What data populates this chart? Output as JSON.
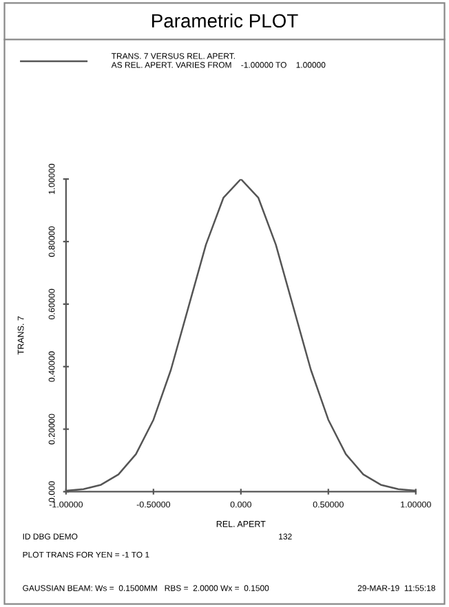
{
  "chart_data": {
    "type": "line",
    "title": "Parametric PLOT",
    "xlabel": "REL. APERT",
    "ylabel": "TRANS. 7",
    "x": [
      -1.0,
      -0.9,
      -0.8,
      -0.7,
      -0.6,
      -0.5,
      -0.4,
      -0.3,
      -0.2,
      -0.1,
      0.0,
      0.1,
      0.2,
      0.3,
      0.4,
      0.5,
      0.6,
      0.7,
      0.8,
      0.9,
      1.0
    ],
    "series": [
      {
        "name": "TRANS. 7 VERSUS REL. APERT.\nAS REL. APERT. VARIES FROM    -1.00000 TO    1.00000",
        "color": "#555555",
        "values": [
          0.003,
          0.008,
          0.022,
          0.055,
          0.12,
          0.23,
          0.39,
          0.59,
          0.79,
          0.94,
          1.0,
          0.94,
          0.79,
          0.59,
          0.39,
          0.23,
          0.12,
          0.055,
          0.022,
          0.008,
          0.003
        ]
      }
    ],
    "xlim": [
      -1.0,
      1.0
    ],
    "ylim": [
      0.0,
      1.0
    ],
    "xticks": [
      {
        "value": -1.0,
        "label": "-1.00000"
      },
      {
        "value": -0.5,
        "label": "-0.50000"
      },
      {
        "value": 0.0,
        "label": "0.000"
      },
      {
        "value": 0.5,
        "label": "0.50000"
      },
      {
        "value": 1.0,
        "label": "1.00000"
      }
    ],
    "yticks": [
      {
        "value": 0.0,
        "label": "0.000"
      },
      {
        "value": 0.2,
        "label": "0.20000"
      },
      {
        "value": 0.4,
        "label": "0.40000"
      },
      {
        "value": 0.6,
        "label": "0.60000"
      },
      {
        "value": 0.8,
        "label": "0.80000"
      },
      {
        "value": 1.0,
        "label": "1.00000"
      }
    ],
    "grid": false,
    "legend": "top left",
    "marker": "none",
    "line_style": "solid",
    "annotations": [
      "ID DBG DEMO",
      "132",
      "PLOT TRANS FOR YEN = -1 TO 1",
      "GAUSSIAN BEAM: Ws =  0.1500MM   RBS =  2.0000 Wx =  0.1500",
      "29-MAR-19  11:55:18"
    ]
  }
}
